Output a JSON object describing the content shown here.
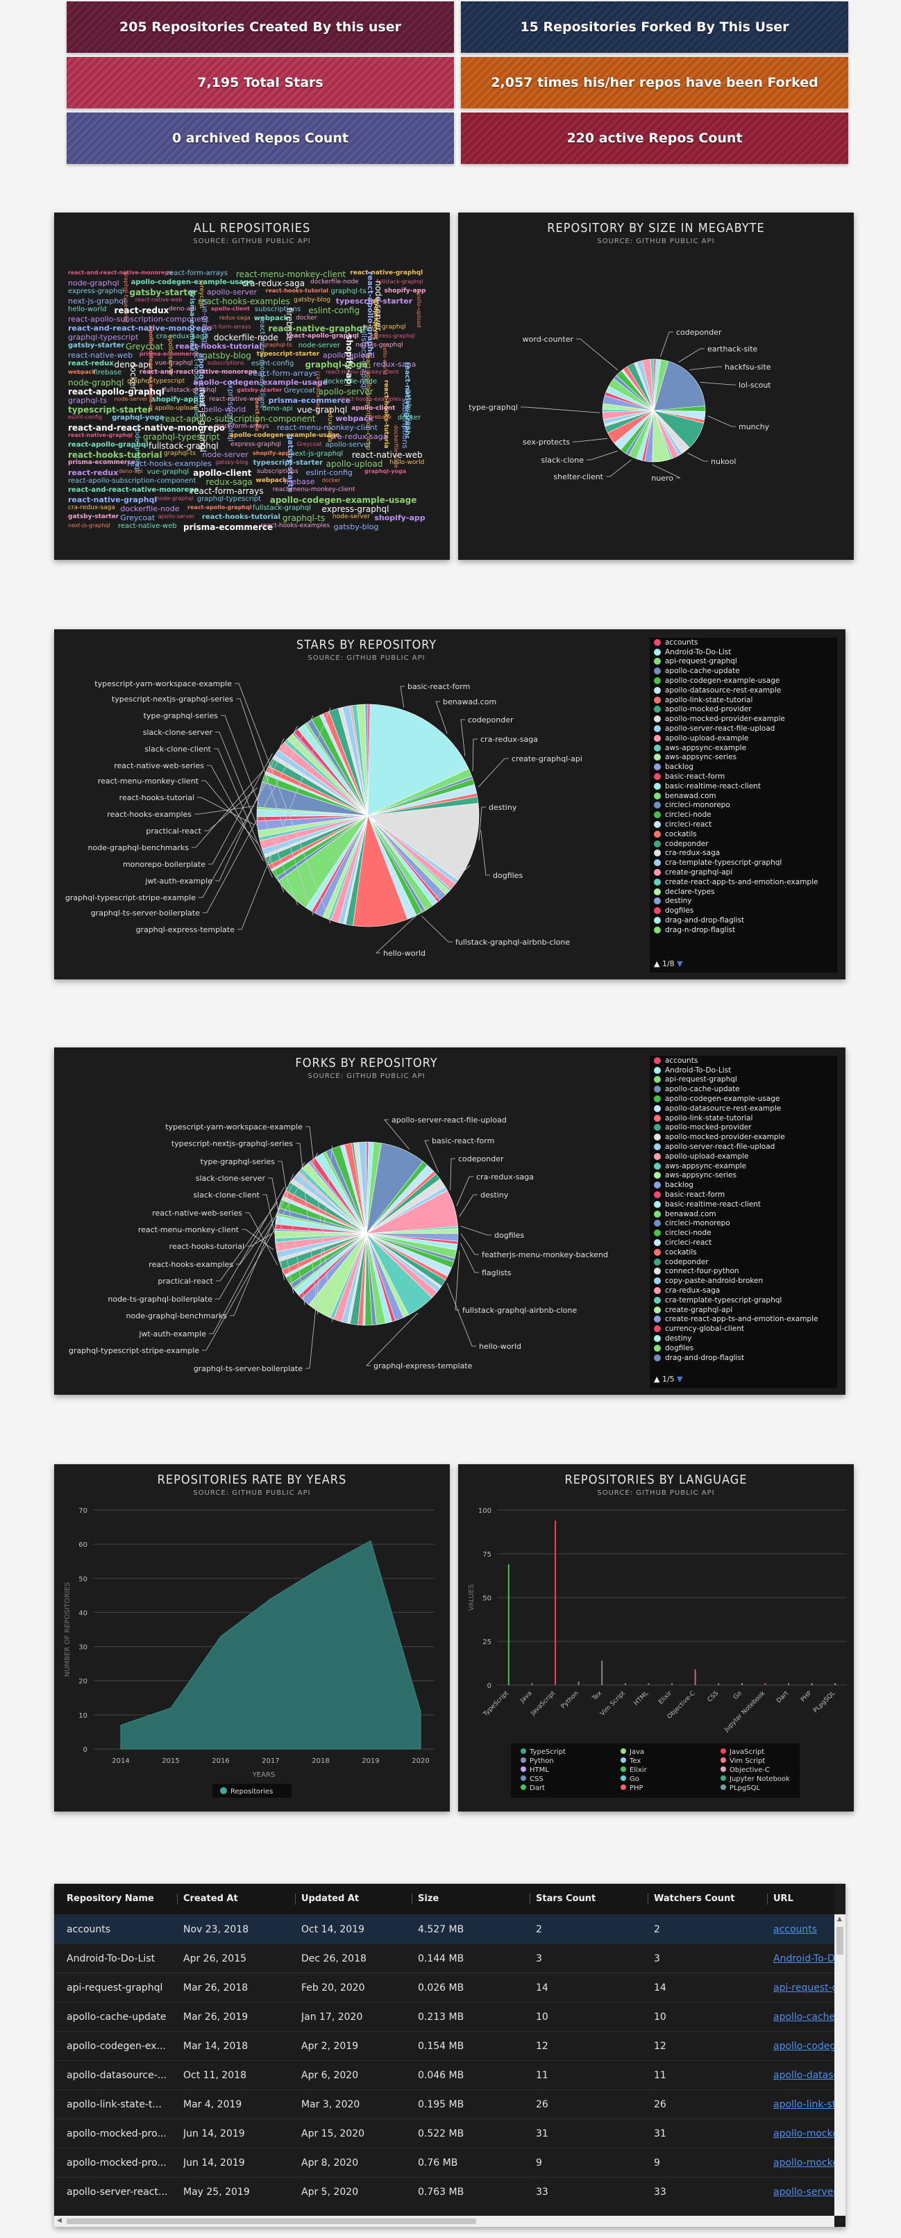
{
  "stats": [
    {
      "label": "205 Repositories Created By this user"
    },
    {
      "label": "15 Repositories Forked By This User"
    },
    {
      "label": "7,195 Total Stars"
    },
    {
      "label": "2,057 times his/her repos have been Forked"
    },
    {
      "label": "0 archived Repos Count"
    },
    {
      "label": "220 active Repos Count"
    }
  ],
  "source": "SOURCE: GITHUB PUBLIC API",
  "wordcloud": {
    "title": "ALL REPOSITORIES",
    "words": [
      "react-and-react-native-monorepo",
      "react-form-arrays",
      "react-menu-monkey-client",
      "react-native-graphql",
      "node-graphql",
      "graphql-typescript",
      "apollo-codegen-example-usage",
      "cra-redux-saga",
      "dockerfile-node",
      "react-apollo-graphql",
      "fullstack-graphql",
      "express-graphql",
      "gatsby-starter",
      "Greycoat",
      "apollo-server",
      "react-hooks-tutorial",
      "graphql-ts",
      "node-server",
      "shopify-app",
      "next-js-graphql",
      "react-native-web",
      "prisma-ecommerce",
      "react-hooks-examples",
      "gatsby-blog",
      "typescript-starter",
      "apollo-upload",
      "hello-world",
      "react-redux",
      "deno-api",
      "vue-graphql",
      "apollo-client",
      "subscriptions",
      "eslint-config",
      "graphql-yoga",
      "react-apollo-subscription-component",
      "redux-saga",
      "webpack",
      "firebase",
      "docker"
    ]
  },
  "size_chart": {
    "title": "REPOSITORY BY SIZE IN MEGABYTE",
    "labels": [
      "word-counter",
      "codeponder",
      "earthack-site",
      "hackfsu-site",
      "lol-scout",
      "type-graphql",
      "munchy",
      "sex-protects",
      "nukool",
      "slack-clone",
      "shelter-client",
      "nuero"
    ]
  },
  "stars_chart": {
    "title": "STARS BY REPOSITORY",
    "labels": [
      "typescript-yarn-workspace-example",
      "typescript-nextjs-graphql-series",
      "type-graphql-series",
      "slack-clone-server",
      "slack-clone-client",
      "react-native-web-series",
      "react-menu-monkey-client",
      "react-hooks-tutorial",
      "react-hooks-examples",
      "practical-react",
      "node-graphql-benchmarks",
      "monorepo-boilerplate",
      "jwt-auth-example",
      "graphql-typescript-stripe-example",
      "graphql-ts-server-boilerplate",
      "graphql-express-template",
      "hello-world",
      "fullstack-graphql-airbnb-clone",
      "dogfiles",
      "destiny",
      "create-graphql-api",
      "cra-redux-saga",
      "codeponder",
      "benawad.com",
      "basic-react-form"
    ],
    "legend": [
      "accounts",
      "Android-To-Do-List",
      "api-request-graphql",
      "apollo-cache-update",
      "apollo-codegen-example-usage",
      "apollo-datasource-rest-example",
      "apollo-link-state-tutorial",
      "apollo-mocked-provider",
      "apollo-mocked-provider-example",
      "apollo-server-react-file-upload",
      "apollo-upload-example",
      "aws-appsync-example",
      "aws-appsync-series",
      "backlog",
      "basic-react-form",
      "basic-realtime-react-client",
      "benawad.com",
      "circleci-monorepo",
      "circleci-node",
      "circleci-react",
      "cockatils",
      "codeponder",
      "cra-redux-saga",
      "cra-template-typescript-graphql",
      "create-graphql-api",
      "create-react-app-ts-and-emotion-example",
      "declare-types",
      "destiny",
      "dogfiles",
      "drag-and-drop-flaglist",
      "drag-n-drop-flaglist"
    ],
    "page": "1/8"
  },
  "forks_chart": {
    "title": "FORKS BY REPOSITORY",
    "labels": [
      "typescript-yarn-workspace-example",
      "typescript-nextjs-graphql-series",
      "type-graphql-series",
      "slack-clone-server",
      "slack-clone-client",
      "react-native-web-series",
      "react-menu-monkey-client",
      "react-hooks-tutorial",
      "react-hooks-examples",
      "practical-react",
      "node-ts-graphql-boilerplate",
      "node-graphql-benchmarks",
      "jwt-auth-example",
      "graphql-typescript-stripe-example",
      "graphql-ts-server-boilerplate",
      "graphql-express-template",
      "hello-world",
      "fullstack-graphql-airbnb-clone",
      "flaglists",
      "featherjs-menu-monkey-backend",
      "dogfiles",
      "destiny",
      "cra-redux-saga",
      "codeponder",
      "basic-react-form",
      "apollo-server-react-file-upload"
    ],
    "legend": [
      "accounts",
      "Android-To-Do-List",
      "api-request-graphql",
      "apollo-cache-update",
      "apollo-codegen-example-usage",
      "apollo-datasource-rest-example",
      "apollo-link-state-tutorial",
      "apollo-mocked-provider",
      "apollo-mocked-provider-example",
      "apollo-server-react-file-upload",
      "apollo-upload-example",
      "aws-appsync-example",
      "aws-appsync-series",
      "backlog",
      "basic-react-form",
      "basic-realtime-react-client",
      "benawad.com",
      "circleci-monorepo",
      "circleci-node",
      "circleci-react",
      "cockatils",
      "codeponder",
      "connect-four-python",
      "copy-paste-android-broken",
      "cra-redux-saga",
      "cra-template-typescript-graphql",
      "create-graphql-api",
      "create-react-app-ts-and-emotion-example",
      "currency-global-client",
      "destiny",
      "dogfiles",
      "drag-and-drop-flaglist"
    ],
    "page": "1/5"
  },
  "chart_data": [
    {
      "type": "area",
      "title": "REPOSITORIES RATE BY YEARS",
      "xlabel": "YEARS",
      "ylabel": "NUMBER OF REPOSITORIES",
      "x": [
        "2014",
        "2015",
        "2016",
        "2017",
        "2018",
        "2019",
        "2020"
      ],
      "series": [
        {
          "name": "Repositories",
          "values": [
            7,
            12,
            33,
            44,
            53,
            61,
            11
          ]
        }
      ],
      "ylim": [
        0,
        70
      ],
      "yticks": [
        "0",
        "10",
        "20",
        "30",
        "40",
        "50",
        "60",
        "70"
      ],
      "grid": true,
      "legend_position": "bottom",
      "color": "#2e6e6a"
    },
    {
      "type": "bar",
      "title": "REPOSITORIES BY LANGUAGE",
      "ylabel": "VALUES",
      "categories": [
        "TypeScript",
        "Java",
        "JavaScript",
        "Python",
        "Tex",
        "Vim Script",
        "HTML",
        "Elixir",
        "Objective-C",
        "CSS",
        "Go",
        "Jupyter Notebook",
        "Dart",
        "PHP",
        "PLpgSQL"
      ],
      "values": [
        69,
        1,
        94,
        2,
        14,
        1,
        1,
        1,
        9,
        1,
        1,
        1,
        1,
        1,
        1
      ],
      "ylim": [
        0,
        100
      ],
      "yticks": [
        "0",
        "25",
        "50",
        "75",
        "100"
      ],
      "grid": true,
      "legend_position": "bottom",
      "legend_columns": [
        [
          "TypeScript",
          "Python",
          "HTML",
          "CSS",
          "Dart"
        ],
        [
          "Java",
          "Tex",
          "Elixir",
          "Go",
          "PHP"
        ],
        [
          "JavaScript",
          "Vim Script",
          "Objective-C",
          "Jupyter Notebook",
          "PLpgSQL"
        ]
      ],
      "tick_labels": [
        "TypeScript",
        "Java",
        "JavaScript",
        "Python",
        "Tex",
        "Vim Script",
        "HTML",
        "Elixir",
        "Objective-C",
        "CSS",
        "Go",
        "Jupyter Notebook",
        "Dart",
        "PHP",
        "PLpgSQL"
      ]
    }
  ],
  "table": {
    "columns": [
      "Repository Name",
      "Created At",
      "Updated At",
      "Size",
      "Stars Count",
      "Watchers Count",
      "URL"
    ],
    "rows": [
      {
        "name": "accounts",
        "created": "Nov 23, 2018",
        "updated": "Oct 14, 2019",
        "size": "4.527 MB",
        "stars": "2",
        "watchers": "2",
        "url": "accounts"
      },
      {
        "name": "Android-To-Do-List",
        "created": "Apr 26, 2015",
        "updated": "Dec 26, 2018",
        "size": "0.144 MB",
        "stars": "3",
        "watchers": "3",
        "url": "Android-To-Do-List"
      },
      {
        "name": "api-request-graphql",
        "created": "Mar 26, 2018",
        "updated": "Feb 20, 2020",
        "size": "0.026 MB",
        "stars": "14",
        "watchers": "14",
        "url": "api-request-graphql"
      },
      {
        "name": "apollo-cache-update",
        "created": "Mar 26, 2019",
        "updated": "Jan 17, 2020",
        "size": "0.213 MB",
        "stars": "10",
        "watchers": "10",
        "url": "apollo-cache-update"
      },
      {
        "name": "apollo-codegen-ex...",
        "created": "Mar 14, 2018",
        "updated": "Apr 2, 2019",
        "size": "0.154 MB",
        "stars": "12",
        "watchers": "12",
        "url": "apollo-codegen-example-usage"
      },
      {
        "name": "apollo-datasource-...",
        "created": "Oct 11, 2018",
        "updated": "Apr 6, 2020",
        "size": "0.046 MB",
        "stars": "11",
        "watchers": "11",
        "url": "apollo-datasource-rest-example"
      },
      {
        "name": "apollo-link-state-t...",
        "created": "Mar 4, 2019",
        "updated": "Mar 3, 2020",
        "size": "0.195 MB",
        "stars": "26",
        "watchers": "26",
        "url": "apollo-link-state-tutorial"
      },
      {
        "name": "apollo-mocked-pro...",
        "created": "Jun 14, 2019",
        "updated": "Apr 15, 2020",
        "size": "0.522 MB",
        "stars": "31",
        "watchers": "31",
        "url": "apollo-mocked-provider"
      },
      {
        "name": "apollo-mocked-pro...",
        "created": "Jun 14, 2019",
        "updated": "Apr 8, 2020",
        "size": "0.76 MB",
        "stars": "9",
        "watchers": "9",
        "url": "apollo-mocked-provider-example"
      },
      {
        "name": "apollo-server-react...",
        "created": "May 25, 2019",
        "updated": "Apr 5, 2020",
        "size": "0.763 MB",
        "stars": "33",
        "watchers": "33",
        "url": "apollo-server-react-file-upload"
      }
    ]
  },
  "colors": {
    "page_bg": "#f4f4f4",
    "panel_bg": "#1c1c1c",
    "accent_teal": "#2e6e6a",
    "link": "#4f8ff0"
  }
}
